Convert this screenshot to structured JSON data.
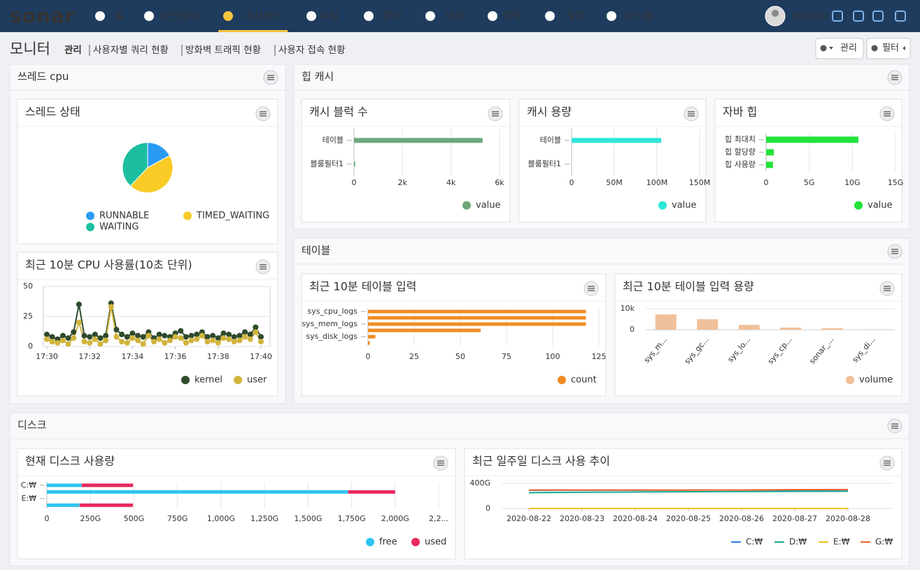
{
  "nav": {
    "logo": "sonar",
    "items": [
      "홈",
      "보안정보",
      "대시보드",
      "수집",
      "분석",
      "대응",
      "정책",
      "계정",
      "시스템"
    ],
    "active": 2,
    "user": "manual"
  },
  "header": {
    "title": "모니터",
    "links": [
      "관리",
      "사용자별 쿼리 현황",
      "방화벽 트래픽 현황",
      "사용자 접속 현황"
    ],
    "buttons": [
      "관리",
      "필터"
    ]
  },
  "panels": [
    "쓰레드 cpu",
    "힙 캐시",
    "테이블",
    "디스크"
  ],
  "chart_data": [
    {
      "type": "pie",
      "title": "스레드 상태",
      "categories": [
        "RUNNABLE",
        "TIMED_WAITING",
        "WAITING"
      ],
      "values": [
        17,
        45,
        38
      ],
      "colors": [
        "#2b9af3",
        "#f8cb26",
        "#1bbf9f"
      ]
    },
    {
      "type": "line",
      "title": "최근 10분 CPU 사용률(10초 단위)",
      "markers": true,
      "legend_marker": "dot",
      "x": [
        "17:30:00",
        "17:30:15",
        "17:30:30",
        "17:30:45",
        "17:31:00",
        "17:31:15",
        "17:31:30",
        "17:31:45",
        "17:32:00",
        "17:32:15",
        "17:32:30",
        "17:32:45",
        "17:33:00",
        "17:33:15",
        "17:33:30",
        "17:33:45",
        "17:34:00",
        "17:34:15",
        "17:34:30",
        "17:34:45",
        "17:35:00",
        "17:35:15",
        "17:35:30",
        "17:35:45",
        "17:36:00",
        "17:36:15",
        "17:36:30",
        "17:36:45",
        "17:37:00",
        "17:37:15",
        "17:37:30",
        "17:37:45",
        "17:38:00",
        "17:38:15",
        "17:38:30",
        "17:38:45",
        "17:39:00",
        "17:39:15",
        "17:39:30",
        "17:39:45",
        "17:40:00"
      ],
      "series": [
        {
          "name": "kernel",
          "color": "#2f4a2c",
          "values": [
            10,
            8,
            6,
            9,
            7,
            12,
            35,
            9,
            8,
            10,
            7,
            9,
            36,
            14,
            10,
            8,
            11,
            9,
            8,
            12,
            7,
            10,
            9,
            8,
            11,
            13,
            8,
            9,
            10,
            12,
            8,
            9,
            7,
            11,
            10,
            8,
            9,
            12,
            10,
            16,
            8
          ]
        },
        {
          "name": "user",
          "color": "#d2b43c",
          "values": [
            6,
            4,
            3,
            5,
            2,
            7,
            20,
            4,
            3,
            6,
            2,
            5,
            33,
            8,
            4,
            3,
            7,
            5,
            2,
            9,
            4,
            6,
            3,
            5,
            8,
            7,
            3,
            5,
            6,
            9,
            4,
            5,
            3,
            7,
            6,
            4,
            5,
            8,
            6,
            12,
            4
          ]
        }
      ],
      "xlim": [
        "17:30:00",
        "17:40:00"
      ],
      "xticks": [
        "17:30",
        "17:32",
        "17:34",
        "17:36",
        "17:38",
        "17:40"
      ],
      "ylim": [
        0,
        50
      ],
      "yticks": [
        0,
        25,
        50
      ],
      "grid": true
    },
    {
      "type": "hbar",
      "title": "캐시 블럭 수",
      "categories": [
        "테이블",
        "블룸필터1"
      ],
      "series": [
        {
          "name": "value",
          "color": "#6aa87a",
          "values": [
            5300,
            50
          ]
        }
      ],
      "xlim": [
        0,
        6000
      ],
      "xticks": [
        0,
        {
          "value": 2000,
          "label": "2k"
        },
        {
          "value": 4000,
          "label": "4k"
        },
        {
          "value": 6000,
          "label": "6k"
        }
      ],
      "grid": true
    },
    {
      "type": "hbar",
      "title": "캐시 용량",
      "categories": [
        "테이블",
        "블룸필터1"
      ],
      "series": [
        {
          "name": "value",
          "color": "#2ee6d8",
          "values": [
            105000000,
            0
          ]
        }
      ],
      "xlim": [
        0,
        150000000
      ],
      "xticks": [
        0,
        {
          "value": 50000000,
          "label": "50M"
        },
        {
          "value": 100000000,
          "label": "100M"
        },
        {
          "value": 150000000,
          "label": "150M"
        }
      ],
      "grid": true
    },
    {
      "type": "hbar",
      "title": "자바 힙",
      "categories": [
        "힙 최대치",
        "힙 할당량",
        "힙 사용량"
      ],
      "series": [
        {
          "name": "value",
          "color": "#22e33a",
          "values": [
            10700000000,
            900000000,
            800000000
          ]
        }
      ],
      "xlim": [
        0,
        15000000000
      ],
      "xticks": [
        0,
        {
          "value": 5000000000,
          "label": "5G"
        },
        {
          "value": 10000000000,
          "label": "10G"
        },
        {
          "value": 15000000000,
          "label": "15G"
        }
      ],
      "grid": true
    },
    {
      "type": "hbar",
      "title": "최근 10분 테이블 입력",
      "categories": [
        "sys_cpu_logs",
        null,
        "sys_mem_logs",
        null,
        "sys_disk_logs",
        null
      ],
      "series": [
        {
          "name": "count",
          "color": "#f08c24",
          "values": [
            118,
            118,
            118,
            61,
            4,
            1
          ]
        }
      ],
      "xlim": [
        0,
        125
      ],
      "xticks": [
        0,
        25,
        50,
        75,
        100,
        125
      ],
      "grid": true
    },
    {
      "type": "bar",
      "title": "최근 10분 테이블 입력 용량",
      "categories": [
        "sys_m...",
        "sys_gc...",
        "sys_lo...",
        "sys_cp...",
        "sonar_...",
        "sys_di..."
      ],
      "series": [
        {
          "name": "volume",
          "color": "#f0c09a",
          "values": [
            7300,
            5000,
            2300,
            1000,
            700,
            100
          ]
        }
      ],
      "ylim": [
        0,
        10000
      ],
      "yticks": [
        0,
        {
          "value": 10000,
          "label": "10k"
        }
      ],
      "grid": true
    },
    {
      "type": "hbar",
      "title": "현재 디스크 사용량",
      "stacked": true,
      "categories": [
        "C:₩",
        null,
        "E:₩",
        null
      ],
      "series": [
        {
          "name": "free",
          "color": "#2ec3ef",
          "values": [
            200,
            1730,
            0,
            188
          ]
        },
        {
          "name": "used",
          "color": "#e8285e",
          "values": [
            295,
            270,
            0,
            306
          ]
        }
      ],
      "xlim": [
        0,
        2300
      ],
      "xticks": [
        0,
        {
          "value": 250,
          "label": "250G"
        },
        {
          "value": 500,
          "label": "500G"
        },
        {
          "value": 750,
          "label": "750G"
        },
        {
          "value": 1000,
          "label": "1,000G"
        },
        {
          "value": 1250,
          "label": "1,250G"
        },
        {
          "value": 1500,
          "label": "1,500G"
        },
        {
          "value": 1750,
          "label": "1,750G"
        },
        {
          "value": 2000,
          "label": "2,000G"
        },
        {
          "value": 2250,
          "label": "2,2..."
        }
      ],
      "grid": true
    },
    {
      "type": "line",
      "title": "최근 일주일 디스크 사용 추이",
      "markers": false,
      "legend_marker": "line",
      "x": [
        "2020-08-22",
        "2020-08-23",
        "2020-08-24",
        "2020-08-25",
        "2020-08-26",
        "2020-08-27",
        "2020-08-28"
      ],
      "series": [
        {
          "name": "C:₩",
          "color": "#2b7fe0",
          "values": [
            290,
            292,
            292,
            293,
            295,
            296,
            297
          ]
        },
        {
          "name": "D:₩",
          "color": "#1aaa8a",
          "values": [
            252,
            258,
            262,
            266,
            270,
            272,
            274
          ]
        },
        {
          "name": "E:₩",
          "color": "#f0c020",
          "values": [
            2,
            2,
            2,
            2,
            2,
            2,
            2
          ]
        },
        {
          "name": "G:₩",
          "color": "#e8602c",
          "values": [
            295,
            295,
            295,
            293,
            295,
            300,
            301
          ]
        }
      ],
      "xlim": [
        "2020-08-21",
        "2020-08-29"
      ],
      "xticks": [
        "2020-08-22",
        "2020-08-23",
        "2020-08-24",
        "2020-08-25",
        "2020-08-26",
        "2020-08-27",
        "2020-08-28"
      ],
      "ylim": [
        0,
        400
      ],
      "yticks": [
        0,
        {
          "value": 400,
          "label": "400G"
        }
      ],
      "grid": true
    }
  ]
}
